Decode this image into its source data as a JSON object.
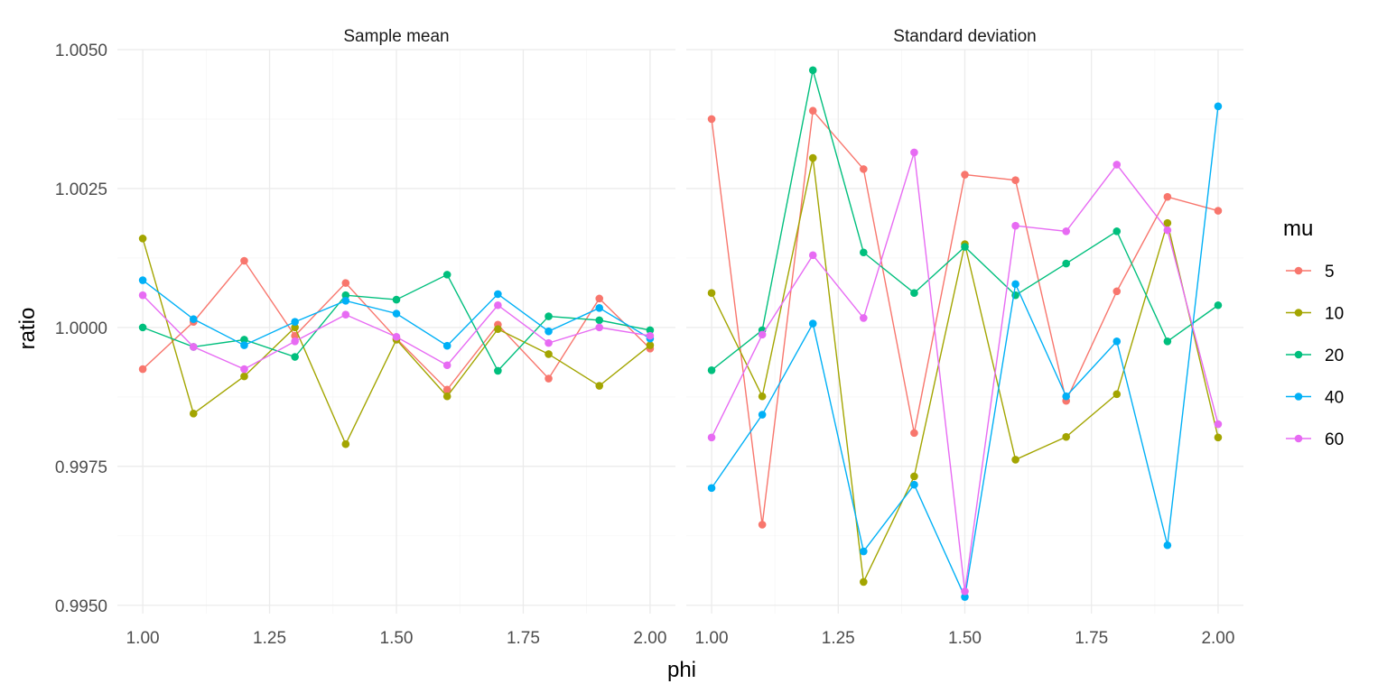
{
  "chart_data": {
    "type": "line",
    "xlabel": "phi",
    "ylabel": "ratio",
    "xlim": [
      0.95,
      2.05
    ],
    "ylim": [
      0.99485,
      1.005
    ],
    "x_ticks": [
      1.0,
      1.25,
      1.5,
      1.75,
      2.0
    ],
    "x_tick_labels": [
      "1.00",
      "1.25",
      "1.50",
      "1.75",
      "2.00"
    ],
    "y_ticks": [
      0.995,
      0.9975,
      1.0,
      1.0025,
      1.005
    ],
    "y_tick_labels": [
      "0.9950",
      "0.9975",
      "1.0000",
      "1.0025",
      "1.0050"
    ],
    "grid": true,
    "legend": {
      "title": "mu",
      "position": "right",
      "entries": [
        "5",
        "10",
        "20",
        "40",
        "60"
      ]
    },
    "colors": {
      "5": "#F8766D",
      "10": "#A3A500",
      "20": "#00BF7D",
      "40": "#00B0F6",
      "60": "#E76BF3"
    },
    "x": [
      1.0,
      1.1,
      1.2,
      1.3,
      1.4,
      1.5,
      1.6,
      1.7,
      1.8,
      1.9,
      2.0
    ],
    "panels": [
      {
        "title": "Sample mean",
        "series": [
          {
            "name": "5",
            "values": [
              0.99925,
              1.0001,
              1.0012,
              0.99985,
              1.0008,
              0.9998,
              0.99888,
              1.00005,
              0.99908,
              1.00052,
              0.99962
            ]
          },
          {
            "name": "10",
            "values": [
              1.0016,
              0.99845,
              0.99912,
              1.0,
              0.9979,
              0.99978,
              0.99876,
              0.99997,
              0.99952,
              0.99895,
              0.99968
            ]
          },
          {
            "name": "20",
            "values": [
              1.0,
              0.99965,
              0.99978,
              0.99947,
              1.00058,
              1.0005,
              1.00095,
              0.99922,
              1.0002,
              1.00013,
              0.99995
            ]
          },
          {
            "name": "40",
            "values": [
              1.00085,
              1.00015,
              0.99968,
              1.0001,
              1.00048,
              1.00025,
              0.99967,
              1.0006,
              0.99993,
              1.00035,
              0.9998
            ]
          },
          {
            "name": "60",
            "values": [
              1.00058,
              0.99965,
              0.99925,
              0.99975,
              1.00023,
              0.99983,
              0.99932,
              1.0004,
              0.99972,
              1.0,
              0.99985
            ]
          }
        ]
      },
      {
        "title": "Standard deviation",
        "series": [
          {
            "name": "5",
            "values": [
              1.00375,
              0.99645,
              1.0039,
              1.00285,
              0.9981,
              1.00275,
              1.00265,
              0.99868,
              1.00065,
              1.00235,
              1.0021
            ]
          },
          {
            "name": "10",
            "values": [
              1.00062,
              0.99876,
              1.00305,
              0.99542,
              0.99732,
              1.0015,
              0.99762,
              0.99803,
              0.9988,
              1.00188,
              0.99802
            ]
          },
          {
            "name": "20",
            "values": [
              0.99923,
              0.99995,
              1.00463,
              1.00135,
              1.00062,
              1.00145,
              1.00058,
              1.00115,
              1.00173,
              0.99975,
              1.0004
            ]
          },
          {
            "name": "40",
            "values": [
              0.99711,
              0.99843,
              1.00007,
              0.99597,
              0.99717,
              0.99515,
              1.00078,
              0.99876,
              0.99975,
              0.99608,
              1.00398
            ]
          },
          {
            "name": "60",
            "values": [
              0.99802,
              0.99987,
              1.0013,
              1.00017,
              1.00315,
              0.99525,
              1.00183,
              1.00173,
              1.00293,
              1.00175,
              0.99826
            ]
          }
        ]
      }
    ]
  }
}
